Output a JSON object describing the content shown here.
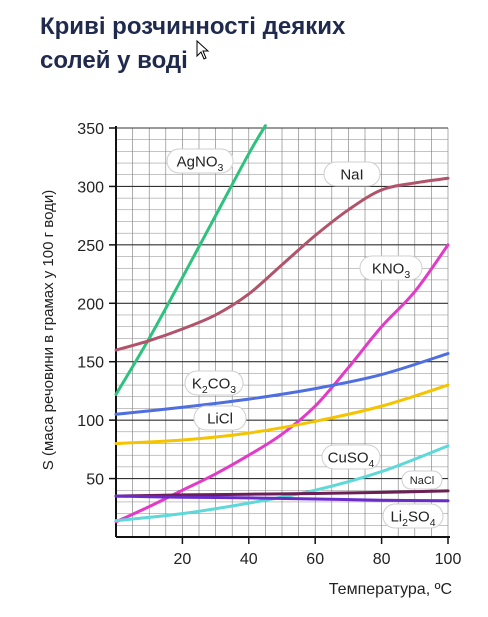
{
  "chart_data": {
    "type": "line",
    "title": [
      "Криві розчинності деяких",
      "солей у воді"
    ],
    "xlabel": "Температура, ºC",
    "ylabel": "S (маса речовини в грамах у 100 г води)",
    "xlim": [
      0,
      100
    ],
    "ylim": [
      0,
      350
    ],
    "xticks": [
      20,
      40,
      60,
      80,
      100
    ],
    "yticks": [
      50,
      100,
      150,
      200,
      250,
      300,
      350
    ],
    "grid": true,
    "series": [
      {
        "name": "AgNO3",
        "label_main": "AgNO",
        "label_sub": "3",
        "color": "#2ec27e",
        "x": [
          0,
          10,
          20,
          30,
          40,
          45
        ],
        "y": [
          122,
          170,
          222,
          275,
          328,
          352
        ]
      },
      {
        "name": "NaI",
        "label_main": "NaI",
        "label_sub": "",
        "color": "#b0536b",
        "x": [
          0,
          10,
          20,
          30,
          40,
          50,
          60,
          70,
          80,
          90,
          100
        ],
        "y": [
          160,
          168,
          178,
          190,
          208,
          233,
          258,
          280,
          297,
          303,
          307
        ]
      },
      {
        "name": "KNO3",
        "label_main": "KNO",
        "label_sub": "3",
        "color": "#e23bc7",
        "x": [
          0,
          10,
          20,
          30,
          40,
          50,
          60,
          70,
          80,
          90,
          100
        ],
        "y": [
          13,
          26,
          40,
          54,
          70,
          88,
          112,
          145,
          180,
          210,
          250
        ]
      },
      {
        "name": "K2CO3",
        "label_main": "K",
        "label_sub": "2",
        "label_main2": "CO",
        "label_sub2": "3",
        "color": "#4f6fe0",
        "x": [
          0,
          20,
          40,
          60,
          80,
          100
        ],
        "y": [
          105,
          111,
          118,
          127,
          139,
          157
        ]
      },
      {
        "name": "LiCl",
        "label_main": "LiCl",
        "label_sub": "",
        "color": "#f5c400",
        "x": [
          0,
          20,
          40,
          60,
          80,
          100
        ],
        "y": [
          80,
          83,
          89,
          99,
          112,
          130
        ]
      },
      {
        "name": "CuSO4",
        "label_main": "CuSO",
        "label_sub": "4",
        "color": "#5ed8d8",
        "x": [
          0,
          20,
          40,
          60,
          80,
          100
        ],
        "y": [
          14,
          20,
          29,
          40,
          56,
          78
        ]
      },
      {
        "name": "NaCl",
        "label_main": "NaCl",
        "label_sub": "",
        "color": "#6b1f55",
        "x": [
          0,
          20,
          40,
          60,
          80,
          100
        ],
        "y": [
          35,
          36,
          36.6,
          37.2,
          38.2,
          39.5
        ]
      },
      {
        "name": "Li2SO4",
        "label_main": "Li",
        "label_sub": "2",
        "label_main2": "SO",
        "label_sub2": "4",
        "color": "#6a2cc9",
        "x": [
          0,
          20,
          40,
          60,
          80,
          100
        ],
        "y": [
          35,
          34,
          33.5,
          32.5,
          31.5,
          31
        ]
      }
    ]
  }
}
